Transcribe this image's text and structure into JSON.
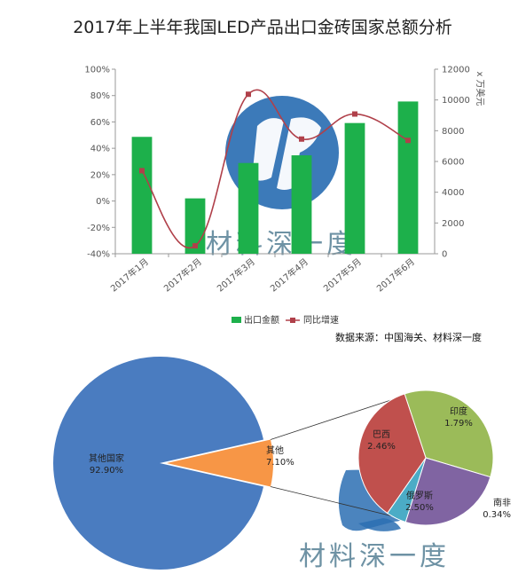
{
  "chart_data": [
    {
      "type": "bar",
      "title": "2017年上半年我国LED产品出口金砖国家总额分析",
      "categories": [
        "2017年1月",
        "2017年2月",
        "2017年3月",
        "2017年4月",
        "2017年5月",
        "2017年6月"
      ],
      "series": [
        {
          "name": "出口金额",
          "type": "bar",
          "axis": "right",
          "color": "#1db04b",
          "values": [
            7600,
            3600,
            5900,
            6400,
            8500,
            9900
          ]
        },
        {
          "name": "同比增速",
          "type": "line",
          "axis": "left",
          "color": "#b0404a",
          "values": [
            0.23,
            -0.34,
            0.81,
            0.47,
            0.66,
            0.46
          ]
        }
      ],
      "left_axis": {
        "ticks": [
          "100%",
          "80%",
          "60%",
          "40%",
          "20%",
          "0%",
          "-20%",
          "-40%"
        ],
        "min": -0.4,
        "max": 1.0
      },
      "right_axis": {
        "label": "x 万美元",
        "ticks": [
          "12000",
          "10000",
          "8000",
          "6000",
          "4000",
          "2000",
          "0"
        ],
        "min": 0,
        "max": 12000
      },
      "grid": false,
      "legend": "bottom"
    },
    {
      "type": "pie",
      "slices": [
        {
          "label": "其他国家",
          "value": "92.90%",
          "num": 92.9,
          "color": "#4a7cc0"
        },
        {
          "label": "其他",
          "value": "7.10%",
          "num": 7.1,
          "color": "#f79646"
        }
      ],
      "breakdown": [
        {
          "label": "巴西",
          "value": "2.46%",
          "num": 2.46,
          "color": "#9bbb59"
        },
        {
          "label": "印度",
          "value": "1.79%",
          "num": 1.79,
          "color": "#8064a2"
        },
        {
          "label": "南非",
          "value": "0.34%",
          "num": 0.34,
          "color": "#4bacc6"
        },
        {
          "label": "俄罗斯",
          "value": "2.50%",
          "num": 2.5,
          "color": "#c0504d"
        }
      ]
    }
  ],
  "source": "数据来源：中国海关、材料深一度",
  "watermark": "材料深一度",
  "colors": {
    "bar": "#1db04b",
    "line": "#b0404a",
    "logo": "#2b6fb3"
  }
}
